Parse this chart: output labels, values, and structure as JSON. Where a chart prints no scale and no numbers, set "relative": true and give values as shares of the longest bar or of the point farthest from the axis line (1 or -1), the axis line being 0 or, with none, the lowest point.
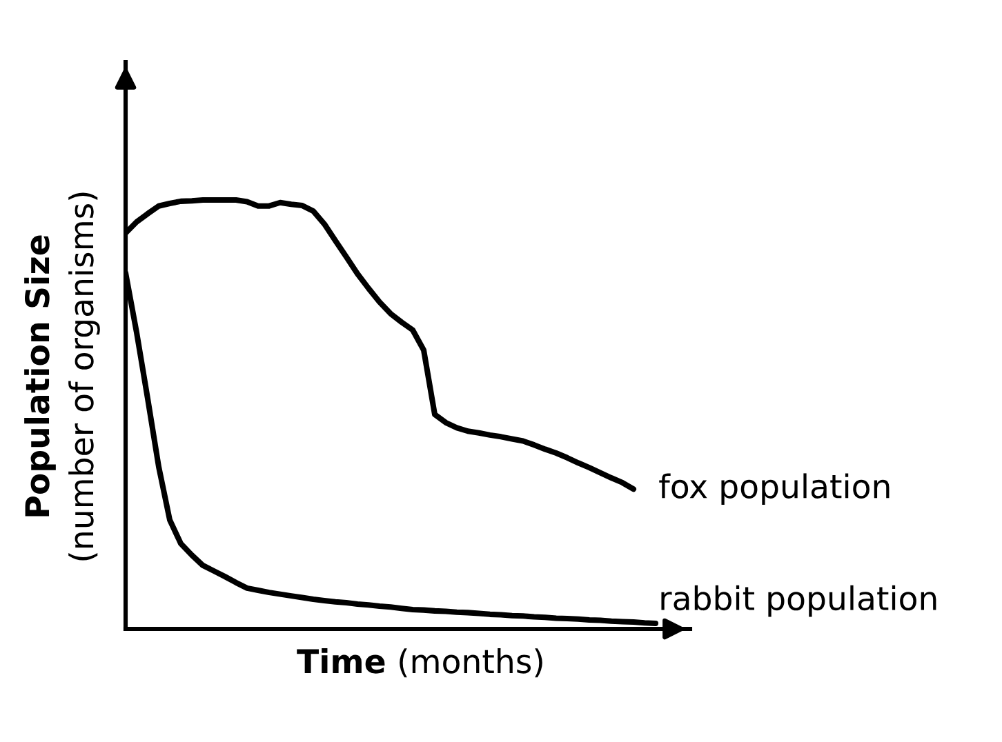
{
  "chart_data": {
    "type": "line",
    "relative": true,
    "xlabel": "Time (months)",
    "ylabel": "Population Size\n(number of organisms)",
    "categories": [
      null,
      null,
      null,
      null,
      null,
      null,
      null,
      null,
      null,
      null,
      null,
      null,
      null,
      null,
      null,
      null,
      null,
      null,
      null,
      null,
      null,
      null,
      null,
      null,
      null,
      null,
      null,
      null,
      null,
      null,
      null,
      null,
      null,
      null,
      null,
      null,
      null,
      null,
      null,
      null,
      null,
      null,
      null,
      null,
      null,
      null,
      null,
      null,
      null
    ],
    "series": [
      {
        "name": "fox population",
        "color": "#000000",
        "values": [
          0.923,
          0.949,
          0.968,
          0.986,
          0.992,
          0.997,
          0.998,
          1,
          1,
          1,
          1,
          0.996,
          0.986,
          0.986,
          0.994,
          0.99,
          0.987,
          0.974,
          0.944,
          0.905,
          0.867,
          0.828,
          0.794,
          0.762,
          0.735,
          0.715,
          0.697,
          0.65,
          0.5,
          0.481,
          0.469,
          0.461,
          0.457,
          0.452,
          0.448,
          0.443,
          0.438,
          0.429,
          0.419,
          0.41,
          0.399,
          0.387,
          0.376,
          0.364,
          0.352,
          0.341,
          0.326,
          null,
          null
        ]
      },
      {
        "name": "rabbit population",
        "color": "#000000",
        "values": [
          0.83,
          0.691,
          0.537,
          0.378,
          0.254,
          0.199,
          0.172,
          0.148,
          0.135,
          0.122,
          0.108,
          0.095,
          0.09,
          0.085,
          0.081,
          0.077,
          0.073,
          0.069,
          0.066,
          0.063,
          0.061,
          0.058,
          0.056,
          0.053,
          0.051,
          0.048,
          0.045,
          0.044,
          0.042,
          0.041,
          0.039,
          0.038,
          0.036,
          0.034,
          0.033,
          0.031,
          0.03,
          0.028,
          0.027,
          0.025,
          0.024,
          0.023,
          0.021,
          0.02,
          0.018,
          0.017,
          0.016,
          0.014,
          0.013
        ]
      }
    ],
    "grid": false,
    "legend": false,
    "marker": "none",
    "line_style": "solid"
  }
}
